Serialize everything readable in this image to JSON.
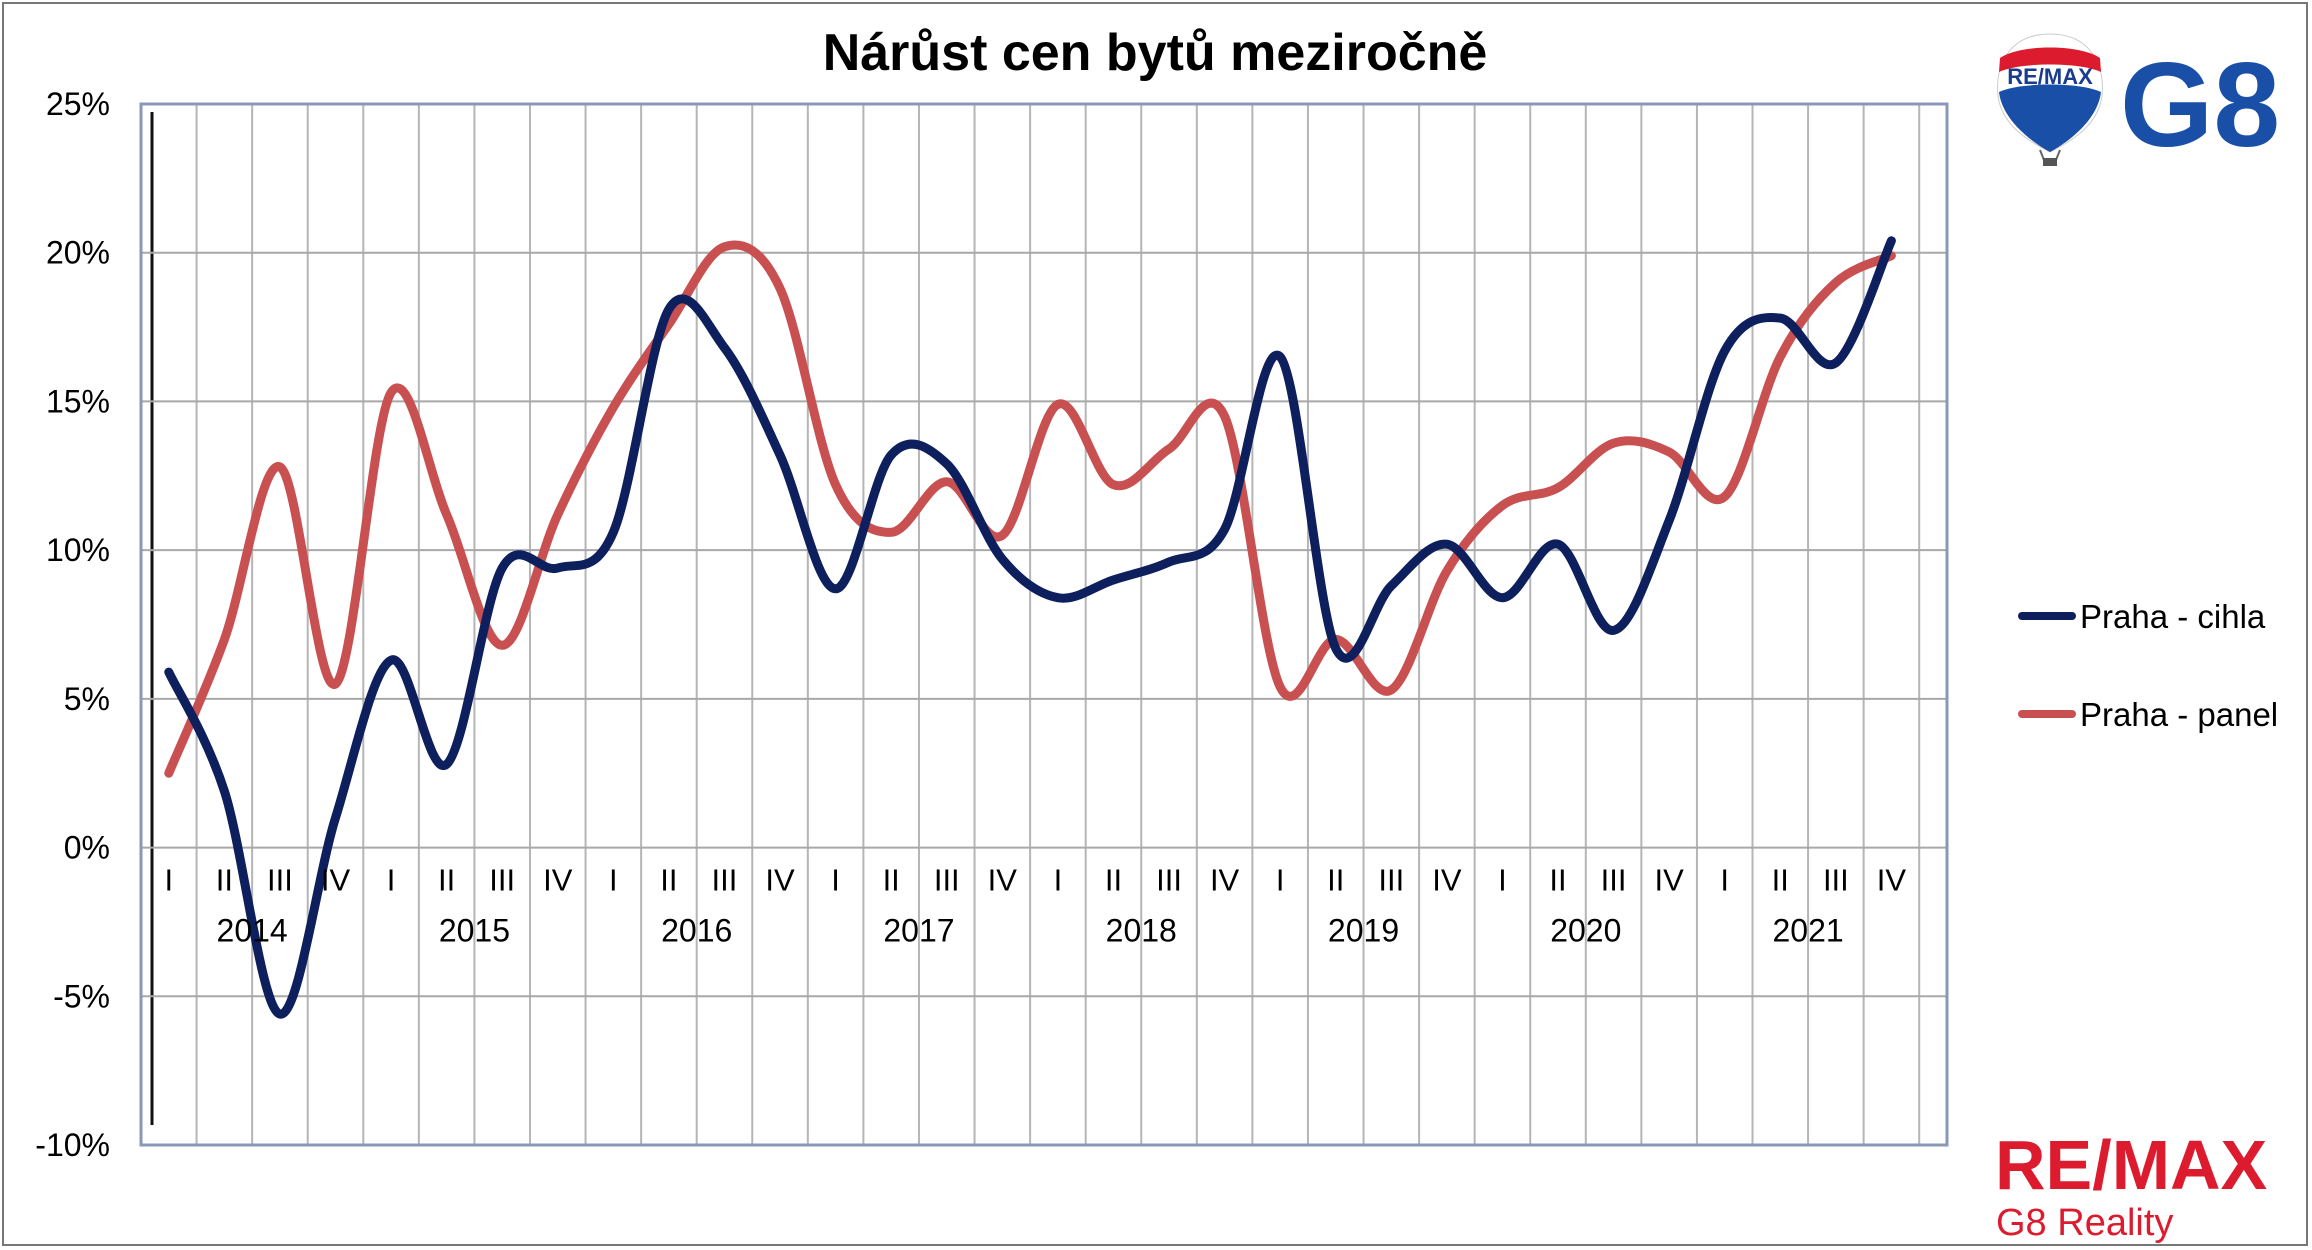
{
  "chart_data": {
    "type": "line",
    "title": "Nárůst cen bytů meziročně",
    "xlabel": "",
    "ylabel": "",
    "ylim": [
      -10,
      25
    ],
    "yticks": [
      -10,
      -5,
      0,
      5,
      10,
      15,
      20,
      25
    ],
    "ytick_labels": [
      "-10%",
      "-5%",
      "0%",
      "5%",
      "10%",
      "15%",
      "20%",
      "25%"
    ],
    "quarters": [
      "I",
      "II",
      "III",
      "IV",
      "I",
      "II",
      "III",
      "IV",
      "I",
      "II",
      "III",
      "IV",
      "I",
      "II",
      "III",
      "IV",
      "I",
      "II",
      "III",
      "IV",
      "I",
      "II",
      "III",
      "IV",
      "I",
      "II",
      "III",
      "IV",
      "I",
      "II",
      "III",
      "IV"
    ],
    "years": [
      "2014",
      "2015",
      "2016",
      "2017",
      "2018",
      "2019",
      "2020",
      "2021"
    ],
    "grid": true,
    "legend_position": "right",
    "series": [
      {
        "name": "Praha - cihla",
        "color": "#0d1f5c",
        "values": [
          5.9,
          1.9,
          -5.6,
          1.0,
          6.3,
          2.8,
          9.4,
          9.4,
          10.6,
          18.1,
          16.8,
          13.2,
          8.7,
          13.2,
          12.9,
          9.7,
          8.4,
          9.0,
          9.6,
          10.7,
          16.5,
          6.7,
          8.8,
          10.2,
          8.4,
          10.2,
          7.3,
          11.0,
          16.7,
          17.8,
          16.3,
          20.4
        ]
      },
      {
        "name": "Praha - panel",
        "color": "#c85050",
        "values": [
          2.5,
          7.0,
          12.8,
          5.5,
          15.3,
          11.2,
          6.8,
          11.2,
          14.8,
          17.6,
          20.2,
          18.8,
          12.2,
          10.6,
          12.3,
          10.5,
          14.9,
          12.2,
          13.4,
          14.5,
          5.4,
          7.0,
          5.3,
          9.3,
          11.5,
          12.1,
          13.6,
          13.3,
          11.8,
          16.5,
          19.0,
          19.9
        ]
      }
    ]
  },
  "branding": {
    "top_logo_text": "G8",
    "balloon_text": "RE/MAX",
    "bottom_logo_text": "RE/MAX",
    "bottom_logo_subtitle": "G8 Reality",
    "brand_red": "#dc1c2e",
    "brand_blue": "#1a4fa8"
  }
}
